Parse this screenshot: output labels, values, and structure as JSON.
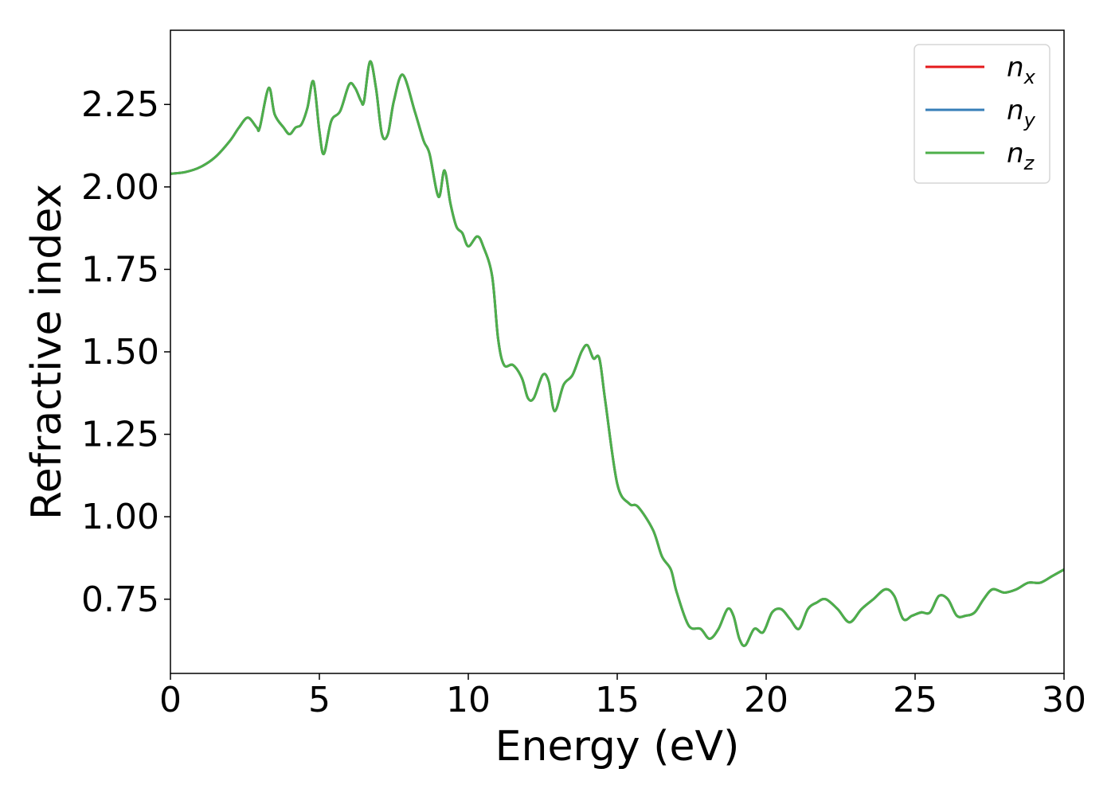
{
  "chart_data": {
    "type": "line",
    "xlabel": "Energy (eV)",
    "ylabel": "Refractive index",
    "xlim": [
      0,
      30
    ],
    "ylim": [
      0.525,
      2.475
    ],
    "xticks": [
      0,
      5,
      10,
      15,
      20,
      25,
      30
    ],
    "xtick_labels": [
      "0",
      "5",
      "10",
      "15",
      "20",
      "25",
      "30"
    ],
    "yticks": [
      0.75,
      1.0,
      1.25,
      1.5,
      1.75,
      2.0,
      2.25
    ],
    "ytick_labels": [
      "0.75",
      "1.00",
      "1.25",
      "1.50",
      "1.75",
      "2.00",
      "2.25"
    ],
    "grid": false,
    "legend_position": "top-right",
    "x": [
      0,
      0.5,
      1.0,
      1.5,
      2.0,
      2.3,
      2.6,
      2.9,
      3.0,
      3.3,
      3.5,
      3.8,
      4.0,
      4.2,
      4.4,
      4.6,
      4.8,
      5.0,
      5.15,
      5.4,
      5.7,
      6.0,
      6.2,
      6.4,
      6.5,
      6.7,
      6.9,
      7.1,
      7.3,
      7.5,
      7.8,
      8.2,
      8.5,
      8.7,
      9.0,
      9.2,
      9.4,
      9.6,
      9.8,
      10.0,
      10.3,
      10.5,
      10.8,
      11.0,
      11.2,
      11.5,
      11.8,
      12.0,
      12.2,
      12.5,
      12.7,
      12.9,
      13.2,
      13.5,
      13.8,
      14.0,
      14.2,
      14.4,
      14.6,
      15.0,
      15.4,
      15.7,
      16.2,
      16.5,
      16.8,
      17.0,
      17.4,
      17.8,
      18.1,
      18.4,
      18.7,
      18.9,
      19.1,
      19.3,
      19.6,
      19.9,
      20.2,
      20.5,
      20.8,
      21.1,
      21.4,
      21.7,
      22.0,
      22.4,
      22.8,
      23.2,
      23.6,
      24.0,
      24.3,
      24.6,
      24.9,
      25.2,
      25.5,
      25.8,
      26.1,
      26.4,
      26.7,
      27.0,
      27.3,
      27.6,
      28.0,
      28.4,
      28.8,
      29.2,
      29.6,
      30.0
    ],
    "series": [
      {
        "name": "n_x",
        "color": "#e41a1c",
        "values": [
          2.04,
          2.045,
          2.06,
          2.09,
          2.14,
          2.18,
          2.21,
          2.18,
          2.18,
          2.3,
          2.22,
          2.18,
          2.16,
          2.18,
          2.19,
          2.24,
          2.32,
          2.17,
          2.1,
          2.2,
          2.23,
          2.31,
          2.3,
          2.26,
          2.26,
          2.38,
          2.3,
          2.16,
          2.16,
          2.26,
          2.34,
          2.23,
          2.14,
          2.1,
          1.97,
          2.05,
          1.95,
          1.88,
          1.86,
          1.82,
          1.85,
          1.82,
          1.73,
          1.54,
          1.46,
          1.46,
          1.42,
          1.36,
          1.36,
          1.43,
          1.41,
          1.32,
          1.4,
          1.43,
          1.5,
          1.52,
          1.48,
          1.48,
          1.35,
          1.1,
          1.04,
          1.03,
          0.96,
          0.88,
          0.84,
          0.77,
          0.67,
          0.66,
          0.63,
          0.66,
          0.72,
          0.7,
          0.63,
          0.61,
          0.66,
          0.65,
          0.71,
          0.72,
          0.69,
          0.66,
          0.72,
          0.74,
          0.75,
          0.72,
          0.68,
          0.72,
          0.75,
          0.78,
          0.76,
          0.69,
          0.7,
          0.71,
          0.71,
          0.76,
          0.75,
          0.7,
          0.7,
          0.71,
          0.75,
          0.78,
          0.77,
          0.78,
          0.8,
          0.8,
          0.82,
          0.84
        ]
      },
      {
        "name": "n_y",
        "color": "#377eb8",
        "values": [
          2.04,
          2.045,
          2.06,
          2.09,
          2.14,
          2.18,
          2.21,
          2.18,
          2.18,
          2.3,
          2.22,
          2.18,
          2.16,
          2.18,
          2.19,
          2.24,
          2.32,
          2.17,
          2.1,
          2.2,
          2.23,
          2.31,
          2.3,
          2.26,
          2.26,
          2.38,
          2.3,
          2.16,
          2.16,
          2.26,
          2.34,
          2.23,
          2.14,
          2.1,
          1.97,
          2.05,
          1.95,
          1.88,
          1.86,
          1.82,
          1.85,
          1.82,
          1.73,
          1.54,
          1.46,
          1.46,
          1.42,
          1.36,
          1.36,
          1.43,
          1.41,
          1.32,
          1.4,
          1.43,
          1.5,
          1.52,
          1.48,
          1.48,
          1.35,
          1.1,
          1.04,
          1.03,
          0.96,
          0.88,
          0.84,
          0.77,
          0.67,
          0.66,
          0.63,
          0.66,
          0.72,
          0.7,
          0.63,
          0.61,
          0.66,
          0.65,
          0.71,
          0.72,
          0.69,
          0.66,
          0.72,
          0.74,
          0.75,
          0.72,
          0.68,
          0.72,
          0.75,
          0.78,
          0.76,
          0.69,
          0.7,
          0.71,
          0.71,
          0.76,
          0.75,
          0.7,
          0.7,
          0.71,
          0.75,
          0.78,
          0.77,
          0.78,
          0.8,
          0.8,
          0.82,
          0.84
        ]
      },
      {
        "name": "n_z",
        "color": "#4daf4a",
        "values": [
          2.04,
          2.045,
          2.06,
          2.09,
          2.14,
          2.18,
          2.21,
          2.18,
          2.18,
          2.3,
          2.22,
          2.18,
          2.16,
          2.18,
          2.19,
          2.24,
          2.32,
          2.17,
          2.1,
          2.2,
          2.23,
          2.31,
          2.3,
          2.26,
          2.26,
          2.38,
          2.3,
          2.16,
          2.16,
          2.26,
          2.34,
          2.23,
          2.14,
          2.1,
          1.97,
          2.05,
          1.95,
          1.88,
          1.86,
          1.82,
          1.85,
          1.82,
          1.73,
          1.54,
          1.46,
          1.46,
          1.42,
          1.36,
          1.36,
          1.43,
          1.41,
          1.32,
          1.4,
          1.43,
          1.5,
          1.52,
          1.48,
          1.48,
          1.35,
          1.1,
          1.04,
          1.03,
          0.96,
          0.88,
          0.84,
          0.77,
          0.67,
          0.66,
          0.63,
          0.66,
          0.72,
          0.7,
          0.63,
          0.61,
          0.66,
          0.65,
          0.71,
          0.72,
          0.69,
          0.66,
          0.72,
          0.74,
          0.75,
          0.72,
          0.68,
          0.72,
          0.75,
          0.78,
          0.76,
          0.69,
          0.7,
          0.71,
          0.71,
          0.76,
          0.75,
          0.7,
          0.7,
          0.71,
          0.75,
          0.78,
          0.77,
          0.78,
          0.8,
          0.8,
          0.82,
          0.84
        ]
      }
    ],
    "legend": [
      {
        "base": "n",
        "sub": "x",
        "color": "#e41a1c"
      },
      {
        "base": "n",
        "sub": "y",
        "color": "#377eb8"
      },
      {
        "base": "n",
        "sub": "z",
        "color": "#4daf4a"
      }
    ]
  }
}
